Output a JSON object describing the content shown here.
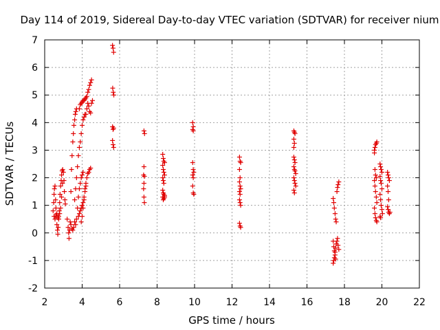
{
  "chart_data": {
    "type": "scatter",
    "title": "Day 114 of 2019, Sidereal Day-to-day VTEC variation (SDTVAR) for receiver nium",
    "xlabel": "GPS time / hours",
    "ylabel": "SDTVAR / TECUs",
    "xlim": [
      2,
      22
    ],
    "ylim": [
      -2,
      7
    ],
    "xticks": [
      2,
      4,
      6,
      8,
      10,
      12,
      14,
      16,
      18,
      20,
      22
    ],
    "yticks": [
      -2,
      -1,
      0,
      1,
      2,
      3,
      4,
      5,
      6,
      7
    ],
    "grid": true,
    "marker": "+",
    "series": [
      {
        "name": "SDTVAR",
        "color": "#e00000",
        "points": [
          [
            2.45,
            0.8
          ],
          [
            2.48,
            1.1
          ],
          [
            2.5,
            1.4
          ],
          [
            2.52,
            1.6
          ],
          [
            2.55,
            1.7
          ],
          [
            2.58,
            1.2
          ],
          [
            2.6,
            0.9
          ],
          [
            2.62,
            0.6
          ],
          [
            2.65,
            0.3
          ],
          [
            2.68,
            0.1
          ],
          [
            2.7,
            -0.05
          ],
          [
            2.72,
            0.2
          ],
          [
            2.75,
            0.5
          ],
          [
            2.78,
            0.8
          ],
          [
            2.8,
            1.1
          ],
          [
            2.82,
            1.4
          ],
          [
            2.85,
            1.7
          ],
          [
            2.88,
            1.9
          ],
          [
            2.9,
            2.1
          ],
          [
            2.93,
            2.25
          ],
          [
            2.96,
            2.3
          ],
          [
            3.0,
            2.2
          ],
          [
            3.03,
            1.9
          ],
          [
            3.05,
            1.5
          ],
          [
            3.08,
            1.2
          ],
          [
            3.1,
            1.05
          ],
          [
            2.5,
            0.6
          ],
          [
            2.55,
            0.5
          ],
          [
            2.6,
            0.65
          ],
          [
            2.65,
            0.7
          ],
          [
            2.7,
            0.55
          ],
          [
            2.75,
            0.6
          ],
          [
            2.8,
            0.7
          ],
          [
            2.85,
            0.9
          ],
          [
            2.9,
            1.3
          ],
          [
            2.95,
            1.8
          ],
          [
            3.2,
            0.5
          ],
          [
            3.25,
            0.2
          ],
          [
            3.28,
            0.0
          ],
          [
            3.3,
            -0.2
          ],
          [
            3.33,
            0.1
          ],
          [
            3.36,
            0.4
          ],
          [
            3.4,
            1.5
          ],
          [
            3.43,
            2.3
          ],
          [
            3.46,
            2.8
          ],
          [
            3.5,
            3.3
          ],
          [
            3.53,
            3.6
          ],
          [
            3.56,
            3.9
          ],
          [
            3.6,
            4.1
          ],
          [
            3.63,
            4.3
          ],
          [
            3.66,
            4.4
          ],
          [
            3.7,
            4.5
          ],
          [
            3.4,
            0.3
          ],
          [
            3.45,
            0.15
          ],
          [
            3.5,
            0.1
          ],
          [
            3.55,
            0.2
          ],
          [
            3.6,
            0.4
          ],
          [
            3.65,
            0.3
          ],
          [
            3.7,
            0.5
          ],
          [
            3.75,
            0.9
          ],
          [
            3.8,
            1.3
          ],
          [
            3.85,
            1.6
          ],
          [
            3.9,
            1.8
          ],
          [
            3.95,
            2.0
          ],
          [
            4.0,
            2.1
          ],
          [
            4.05,
            2.2
          ],
          [
            3.6,
            1.2
          ],
          [
            3.65,
            1.6
          ],
          [
            3.7,
            2.0
          ],
          [
            3.75,
            2.4
          ],
          [
            3.8,
            2.8
          ],
          [
            3.85,
            3.1
          ],
          [
            3.9,
            3.3
          ],
          [
            3.95,
            3.6
          ],
          [
            4.0,
            3.9
          ],
          [
            4.05,
            4.1
          ],
          [
            4.1,
            4.2
          ],
          [
            4.15,
            4.3
          ],
          [
            3.8,
            0.6
          ],
          [
            3.85,
            0.7
          ],
          [
            3.9,
            0.8
          ],
          [
            3.95,
            0.9
          ],
          [
            4.0,
            1.0
          ],
          [
            4.05,
            1.1
          ],
          [
            4.1,
            1.3
          ],
          [
            4.15,
            1.6
          ],
          [
            4.2,
            1.8
          ],
          [
            4.25,
            2.0
          ],
          [
            4.3,
            2.15
          ],
          [
            4.35,
            2.2
          ],
          [
            4.4,
            2.3
          ],
          [
            4.45,
            2.35
          ],
          [
            3.85,
            4.5
          ],
          [
            3.9,
            4.65
          ],
          [
            3.95,
            4.7
          ],
          [
            4.0,
            4.75
          ],
          [
            4.05,
            4.8
          ],
          [
            4.1,
            4.8
          ],
          [
            4.15,
            4.85
          ],
          [
            4.2,
            4.9
          ],
          [
            4.25,
            4.95
          ],
          [
            4.3,
            5.1
          ],
          [
            4.35,
            5.2
          ],
          [
            4.4,
            5.35
          ],
          [
            4.45,
            5.45
          ],
          [
            4.5,
            5.55
          ],
          [
            4.2,
            4.3
          ],
          [
            4.25,
            4.5
          ],
          [
            4.3,
            4.7
          ],
          [
            4.35,
            4.6
          ],
          [
            4.4,
            4.4
          ],
          [
            4.45,
            4.35
          ],
          [
            4.5,
            4.7
          ],
          [
            4.55,
            4.8
          ],
          [
            3.95,
            0.4
          ],
          [
            4.0,
            0.6
          ],
          [
            4.05,
            0.9
          ],
          [
            4.1,
            1.2
          ],
          [
            4.15,
            1.5
          ],
          [
            4.2,
            1.7
          ],
          [
            5.62,
            6.8
          ],
          [
            5.65,
            6.7
          ],
          [
            5.68,
            6.55
          ],
          [
            5.63,
            5.25
          ],
          [
            5.66,
            5.1
          ],
          [
            5.69,
            5.0
          ],
          [
            5.62,
            3.85
          ],
          [
            5.65,
            3.75
          ],
          [
            5.68,
            3.8
          ],
          [
            5.62,
            3.35
          ],
          [
            5.65,
            3.2
          ],
          [
            5.68,
            3.1
          ],
          [
            7.3,
            3.7
          ],
          [
            7.33,
            3.6
          ],
          [
            7.3,
            2.4
          ],
          [
            7.28,
            2.1
          ],
          [
            7.32,
            2.05
          ],
          [
            7.3,
            1.8
          ],
          [
            7.28,
            1.6
          ],
          [
            7.3,
            1.3
          ],
          [
            7.32,
            1.1
          ],
          [
            8.3,
            2.85
          ],
          [
            8.33,
            2.7
          ],
          [
            8.36,
            2.6
          ],
          [
            8.4,
            2.55
          ],
          [
            8.3,
            2.45
          ],
          [
            8.33,
            2.3
          ],
          [
            8.36,
            2.2
          ],
          [
            8.4,
            2.1
          ],
          [
            8.3,
            2.0
          ],
          [
            8.33,
            1.9
          ],
          [
            8.36,
            1.8
          ],
          [
            8.3,
            1.55
          ],
          [
            8.33,
            1.45
          ],
          [
            8.36,
            1.4
          ],
          [
            8.4,
            1.35
          ],
          [
            8.3,
            1.3
          ],
          [
            8.33,
            1.2
          ],
          [
            8.36,
            1.25
          ],
          [
            8.4,
            1.3
          ],
          [
            9.9,
            4.0
          ],
          [
            9.93,
            3.85
          ],
          [
            9.9,
            3.75
          ],
          [
            9.93,
            3.7
          ],
          [
            9.9,
            2.55
          ],
          [
            9.93,
            2.3
          ],
          [
            9.96,
            2.2
          ],
          [
            9.9,
            2.1
          ],
          [
            9.93,
            2.0
          ],
          [
            9.9,
            1.7
          ],
          [
            9.93,
            1.45
          ],
          [
            9.96,
            1.4
          ],
          [
            12.4,
            2.75
          ],
          [
            12.43,
            2.6
          ],
          [
            12.46,
            2.55
          ],
          [
            12.4,
            2.3
          ],
          [
            12.43,
            2.0
          ],
          [
            12.4,
            1.85
          ],
          [
            12.43,
            1.7
          ],
          [
            12.46,
            1.6
          ],
          [
            12.4,
            1.5
          ],
          [
            12.43,
            1.4
          ],
          [
            12.4,
            1.2
          ],
          [
            12.43,
            1.1
          ],
          [
            12.46,
            1.0
          ],
          [
            12.4,
            0.35
          ],
          [
            12.43,
            0.25
          ],
          [
            12.46,
            0.2
          ],
          [
            15.3,
            3.7
          ],
          [
            15.33,
            3.65
          ],
          [
            15.36,
            3.6
          ],
          [
            15.3,
            3.4
          ],
          [
            15.33,
            3.25
          ],
          [
            15.3,
            3.1
          ],
          [
            15.3,
            2.75
          ],
          [
            15.33,
            2.65
          ],
          [
            15.36,
            2.55
          ],
          [
            15.3,
            2.4
          ],
          [
            15.33,
            2.3
          ],
          [
            15.36,
            2.25
          ],
          [
            15.4,
            2.15
          ],
          [
            15.3,
            2.0
          ],
          [
            15.33,
            1.9
          ],
          [
            15.36,
            1.8
          ],
          [
            15.4,
            1.7
          ],
          [
            15.3,
            1.55
          ],
          [
            15.33,
            1.45
          ],
          [
            17.4,
            1.25
          ],
          [
            17.43,
            1.1
          ],
          [
            17.46,
            0.9
          ],
          [
            17.5,
            0.7
          ],
          [
            17.53,
            0.5
          ],
          [
            17.56,
            0.4
          ],
          [
            17.6,
            1.5
          ],
          [
            17.63,
            1.65
          ],
          [
            17.66,
            1.75
          ],
          [
            17.7,
            1.85
          ],
          [
            17.4,
            -0.3
          ],
          [
            17.43,
            -0.5
          ],
          [
            17.46,
            -0.65
          ],
          [
            17.5,
            -0.8
          ],
          [
            17.53,
            -0.95
          ],
          [
            17.4,
            -1.1
          ],
          [
            17.43,
            -1.0
          ],
          [
            17.46,
            -0.9
          ],
          [
            17.5,
            -0.7
          ],
          [
            17.53,
            -0.55
          ],
          [
            17.56,
            -0.4
          ],
          [
            17.6,
            -0.3
          ],
          [
            17.63,
            -0.2
          ],
          [
            17.66,
            -0.45
          ],
          [
            17.7,
            -0.6
          ],
          [
            19.6,
            3.0
          ],
          [
            19.63,
            3.1
          ],
          [
            19.66,
            3.2
          ],
          [
            19.7,
            3.25
          ],
          [
            19.73,
            3.3
          ],
          [
            19.6,
            2.9
          ],
          [
            19.63,
            2.3
          ],
          [
            19.66,
            2.1
          ],
          [
            19.7,
            2.0
          ],
          [
            19.6,
            1.9
          ],
          [
            19.63,
            1.7
          ],
          [
            19.66,
            1.5
          ],
          [
            19.7,
            1.3
          ],
          [
            19.73,
            1.1
          ],
          [
            19.6,
            0.9
          ],
          [
            19.63,
            0.7
          ],
          [
            19.66,
            0.55
          ],
          [
            19.7,
            0.45
          ],
          [
            19.73,
            0.4
          ],
          [
            19.9,
            2.5
          ],
          [
            19.93,
            2.4
          ],
          [
            19.96,
            2.3
          ],
          [
            20.0,
            2.2
          ],
          [
            19.9,
            2.05
          ],
          [
            19.93,
            1.9
          ],
          [
            19.96,
            1.8
          ],
          [
            20.0,
            1.6
          ],
          [
            19.9,
            1.4
          ],
          [
            19.93,
            1.2
          ],
          [
            19.96,
            1.0
          ],
          [
            20.0,
            0.85
          ],
          [
            20.03,
            0.7
          ],
          [
            19.9,
            0.6
          ],
          [
            19.93,
            0.55
          ],
          [
            20.3,
            2.2
          ],
          [
            20.33,
            2.1
          ],
          [
            20.36,
            2.0
          ],
          [
            20.4,
            1.9
          ],
          [
            20.3,
            1.7
          ],
          [
            20.33,
            1.5
          ],
          [
            20.36,
            1.2
          ],
          [
            20.3,
            0.95
          ],
          [
            20.33,
            0.85
          ],
          [
            20.36,
            0.75
          ],
          [
            20.4,
            0.7
          ],
          [
            20.43,
            0.75
          ]
        ]
      }
    ]
  }
}
